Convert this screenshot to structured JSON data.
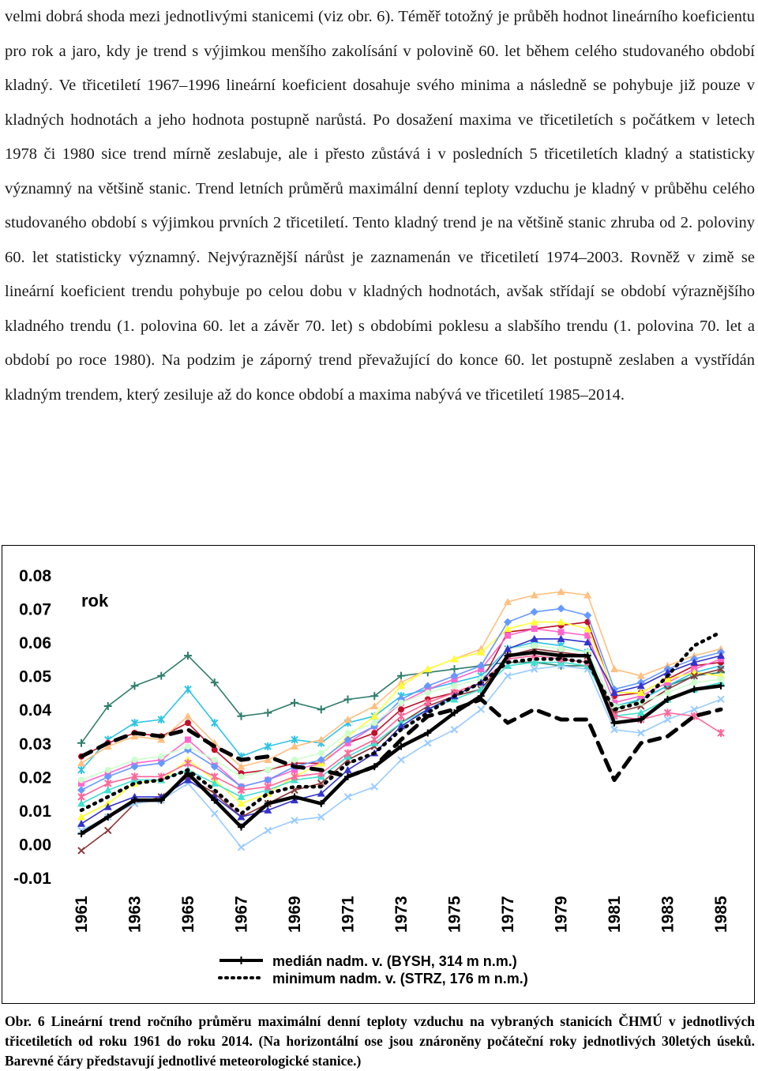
{
  "paragraph": "velmi dobrá shoda mezi jednotlivými stanicemi (viz obr. 6). Téměř totožný je průběh hodnot lineárního koeficientu pro rok a jaro, kdy je trend s výjimkou menšího zakolísání v polovině 60. let během celého studovaného období kladný. Ve třicetiletí 1967–1996 lineární koeficient dosahuje svého minima a následně se pohybuje již pouze v kladných hodnotách a jeho hodnota postupně narůstá. Po dosažení maxima ve třicetiletích s počátkem v letech 1978 či 1980 sice trend mírně zeslabuje, ale i přesto zůstává i v posledních 5 třicetiletích kladný a statisticky významný na většině stanic. Trend letních průměrů maximální denní teploty vzduchu je kladný v průběhu celého studovaného období s výjimkou prvních 2 třicetiletí. Tento kladný trend je na většině stanic zhruba od 2. poloviny 60. let statisticky významný. Nejvýraznější nárůst je zaznamenán ve třicetiletí 1974–2003. Rovněž v zimě se lineární koeficient trendu pohybuje po celou dobu v kladných hodnotách, avšak střídají se období výraznějšího kladného trendu (1. polovina 60. let a závěr 70. let) s obdobími poklesu a slabšího trendu (1. polovina 70. let a období po roce 1980). Na podzim je záporný trend převažující do konce 60. let postupně zeslaben a vystřídán kladným trendem, který zesiluje až do konce období a maxima nabývá ve třicetiletí 1985–2014.",
  "caption": "Obr. 6 Lineární trend ročního průměru maximální denní teploty vzduchu na vybraných stanicích ČHMÚ v jednotlivých třicetiletích od roku 1961 do roku 2014. (Na horizontální ose jsou znároněny počáteční roky jednotlivých 30letých úseků. Barevné čáry představují jednotlivé meteorologické stanice.)",
  "chart_data": {
    "type": "line",
    "annotation": "rok",
    "x": [
      1961,
      1962,
      1963,
      1964,
      1965,
      1966,
      1967,
      1968,
      1969,
      1970,
      1971,
      1972,
      1973,
      1974,
      1975,
      1976,
      1977,
      1978,
      1979,
      1980,
      1981,
      1982,
      1983,
      1984,
      1985
    ],
    "xtick_labels": [
      "1961",
      "1963",
      "1965",
      "1967",
      "1969",
      "1971",
      "1973",
      "1975",
      "1977",
      "1979",
      "1981",
      "1983",
      "1985"
    ],
    "ylim": [
      -0.01,
      0.08
    ],
    "yticks": [
      "0.08",
      "0.07",
      "0.06",
      "0.05",
      "0.04",
      "0.03",
      "0.02",
      "0.01",
      "0.00",
      "-0.01"
    ],
    "series": [
      {
        "name": "medián nadm. v. (BYSH, 314 m n.m.)",
        "color": "#000000",
        "style": "solid-thick",
        "marker": "plus",
        "values": [
          0.003,
          0.008,
          0.013,
          0.013,
          0.021,
          0.013,
          0.005,
          0.012,
          0.014,
          0.012,
          0.02,
          0.023,
          0.029,
          0.033,
          0.039,
          0.044,
          0.056,
          0.057,
          0.056,
          0.056,
          0.036,
          0.037,
          0.043,
          0.046,
          0.047
        ]
      },
      {
        "name": "minimum nadm. v. (STRZ, 176 m n.m.)",
        "color": "#000000",
        "style": "dotted-thick",
        "marker": "circle",
        "values": [
          0.01,
          0.014,
          0.018,
          0.019,
          0.022,
          0.016,
          0.009,
          0.015,
          0.017,
          0.017,
          0.024,
          0.027,
          0.034,
          0.039,
          0.044,
          0.048,
          0.054,
          0.055,
          0.055,
          0.054,
          0.04,
          0.042,
          0.05,
          0.059,
          0.063
        ]
      },
      {
        "color": "#000000",
        "style": "dashed-thick",
        "values": [
          0.026,
          0.03,
          0.033,
          0.032,
          0.034,
          0.029,
          0.025,
          0.026,
          0.023,
          0.022,
          0.02,
          0.023,
          0.031,
          0.038,
          0.04,
          0.043,
          0.036,
          0.04,
          0.037,
          0.037,
          0.019,
          0.03,
          0.032,
          0.038,
          0.04
        ]
      },
      {
        "color": "#2e7d6b",
        "marker": "plus",
        "values": [
          0.03,
          0.041,
          0.047,
          0.05,
          0.056,
          0.048,
          0.038,
          0.039,
          0.042,
          0.04,
          0.043,
          0.044,
          0.05,
          0.051,
          0.052,
          0.053,
          0.054,
          0.054,
          0.053,
          0.053,
          0.04,
          0.043,
          0.047,
          0.05,
          0.051
        ]
      },
      {
        "color": "#2ec4e6",
        "marker": "star",
        "values": [
          0.022,
          0.031,
          0.036,
          0.037,
          0.046,
          0.036,
          0.026,
          0.029,
          0.031,
          0.03,
          0.036,
          0.038,
          0.044,
          0.046,
          0.048,
          0.05,
          0.058,
          0.06,
          0.059,
          0.057,
          0.041,
          0.043,
          0.047,
          0.051,
          0.053
        ]
      },
      {
        "color": "#c0102a",
        "marker": "circle",
        "values": [
          0.026,
          0.03,
          0.033,
          0.032,
          0.036,
          0.028,
          0.021,
          0.022,
          0.024,
          0.024,
          0.03,
          0.033,
          0.04,
          0.043,
          0.045,
          0.048,
          0.063,
          0.064,
          0.065,
          0.066,
          0.044,
          0.045,
          0.049,
          0.053,
          0.054
        ]
      },
      {
        "color": "#ff66cc",
        "marker": "square",
        "values": [
          0.018,
          0.021,
          0.024,
          0.025,
          0.031,
          0.024,
          0.017,
          0.019,
          0.022,
          0.024,
          0.03,
          0.035,
          0.042,
          0.046,
          0.049,
          0.052,
          0.062,
          0.064,
          0.063,
          0.062,
          0.042,
          0.044,
          0.048,
          0.052,
          0.055
        ]
      },
      {
        "color": "#ffbf80",
        "marker": "triangle",
        "values": [
          0.024,
          0.029,
          0.032,
          0.031,
          0.038,
          0.03,
          0.023,
          0.025,
          0.029,
          0.031,
          0.037,
          0.041,
          0.048,
          0.052,
          0.055,
          0.058,
          0.072,
          0.074,
          0.075,
          0.074,
          0.052,
          0.05,
          0.053,
          0.056,
          0.058
        ]
      },
      {
        "color": "#ffff33",
        "marker": "triangle",
        "values": [
          0.008,
          0.012,
          0.018,
          0.019,
          0.025,
          0.019,
          0.012,
          0.015,
          0.02,
          0.024,
          0.032,
          0.038,
          0.047,
          0.052,
          0.055,
          0.057,
          0.064,
          0.066,
          0.066,
          0.064,
          0.045,
          0.045,
          0.049,
          0.051,
          0.05
        ]
      },
      {
        "color": "#6699ff",
        "marker": "diamond",
        "values": [
          0.016,
          0.02,
          0.023,
          0.024,
          0.028,
          0.023,
          0.017,
          0.019,
          0.023,
          0.025,
          0.031,
          0.035,
          0.043,
          0.047,
          0.05,
          0.053,
          0.066,
          0.069,
          0.07,
          0.068,
          0.046,
          0.048,
          0.052,
          0.055,
          0.057
        ]
      },
      {
        "color": "#8b3a3a",
        "marker": "x",
        "values": [
          -0.002,
          0.004,
          0.012,
          0.014,
          0.02,
          0.015,
          0.008,
          0.012,
          0.016,
          0.018,
          0.025,
          0.029,
          0.036,
          0.041,
          0.044,
          0.046,
          0.056,
          0.058,
          0.057,
          0.056,
          0.039,
          0.041,
          0.046,
          0.05,
          0.052
        ]
      },
      {
        "color": "#99ccff",
        "marker": "x",
        "values": [
          0.004,
          0.008,
          0.012,
          0.013,
          0.018,
          0.009,
          -0.001,
          0.004,
          0.007,
          0.008,
          0.014,
          0.017,
          0.025,
          0.03,
          0.034,
          0.04,
          0.05,
          0.052,
          0.053,
          0.052,
          0.034,
          0.033,
          0.037,
          0.04,
          0.043
        ]
      },
      {
        "color": "#40e0d0",
        "marker": "triangle",
        "values": [
          0.012,
          0.016,
          0.019,
          0.019,
          0.022,
          0.018,
          0.014,
          0.016,
          0.019,
          0.02,
          0.026,
          0.03,
          0.036,
          0.04,
          0.043,
          0.046,
          0.053,
          0.054,
          0.054,
          0.053,
          0.038,
          0.039,
          0.043,
          0.046,
          0.048
        ]
      },
      {
        "color": "#ff6699",
        "marker": "star",
        "values": [
          0.014,
          0.018,
          0.02,
          0.02,
          0.024,
          0.02,
          0.016,
          0.017,
          0.02,
          0.021,
          0.027,
          0.031,
          0.038,
          0.042,
          0.045,
          0.048,
          0.055,
          0.056,
          0.055,
          0.054,
          0.038,
          0.037,
          0.039,
          0.038,
          0.033
        ]
      },
      {
        "color": "#ccffcc",
        "marker": "circle",
        "values": [
          0.019,
          0.022,
          0.025,
          0.026,
          0.029,
          0.025,
          0.02,
          0.022,
          0.025,
          0.027,
          0.033,
          0.036,
          0.042,
          0.045,
          0.047,
          0.049,
          0.058,
          0.059,
          0.058,
          0.057,
          0.041,
          0.042,
          0.045,
          0.048,
          0.049
        ]
      },
      {
        "color": "#3333cc",
        "marker": "triangle",
        "values": [
          0.006,
          0.011,
          0.014,
          0.014,
          0.019,
          0.014,
          0.008,
          0.01,
          0.013,
          0.015,
          0.022,
          0.027,
          0.035,
          0.04,
          0.044,
          0.048,
          0.058,
          0.061,
          0.061,
          0.06,
          0.045,
          0.047,
          0.051,
          0.054,
          0.056
        ]
      }
    ]
  }
}
